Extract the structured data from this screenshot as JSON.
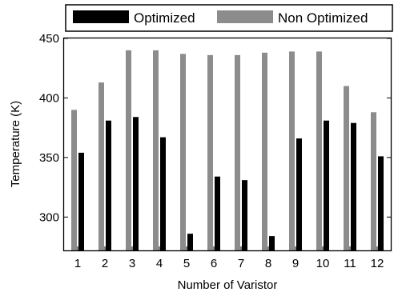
{
  "chart_data": {
    "type": "bar",
    "xlabel": "Number of Varistor",
    "ylabel": "Temperature (K)",
    "ylim": [
      272,
      450
    ],
    "yticks": [
      300,
      350,
      400,
      450
    ],
    "categories": [
      "1",
      "2",
      "3",
      "4",
      "5",
      "6",
      "7",
      "8",
      "9",
      "10",
      "11",
      "12"
    ],
    "series": [
      {
        "name": "Optimized",
        "color": "#000000",
        "values": [
          354,
          381,
          384,
          367,
          286,
          334,
          331,
          284,
          366,
          381,
          379,
          351
        ]
      },
      {
        "name": "Non Optimized",
        "color": "#8c8c8c",
        "values": [
          390,
          413,
          440,
          440,
          437,
          436,
          436,
          438,
          439,
          439,
          410,
          388
        ]
      }
    ],
    "legend_position": "top",
    "grid": false
  }
}
